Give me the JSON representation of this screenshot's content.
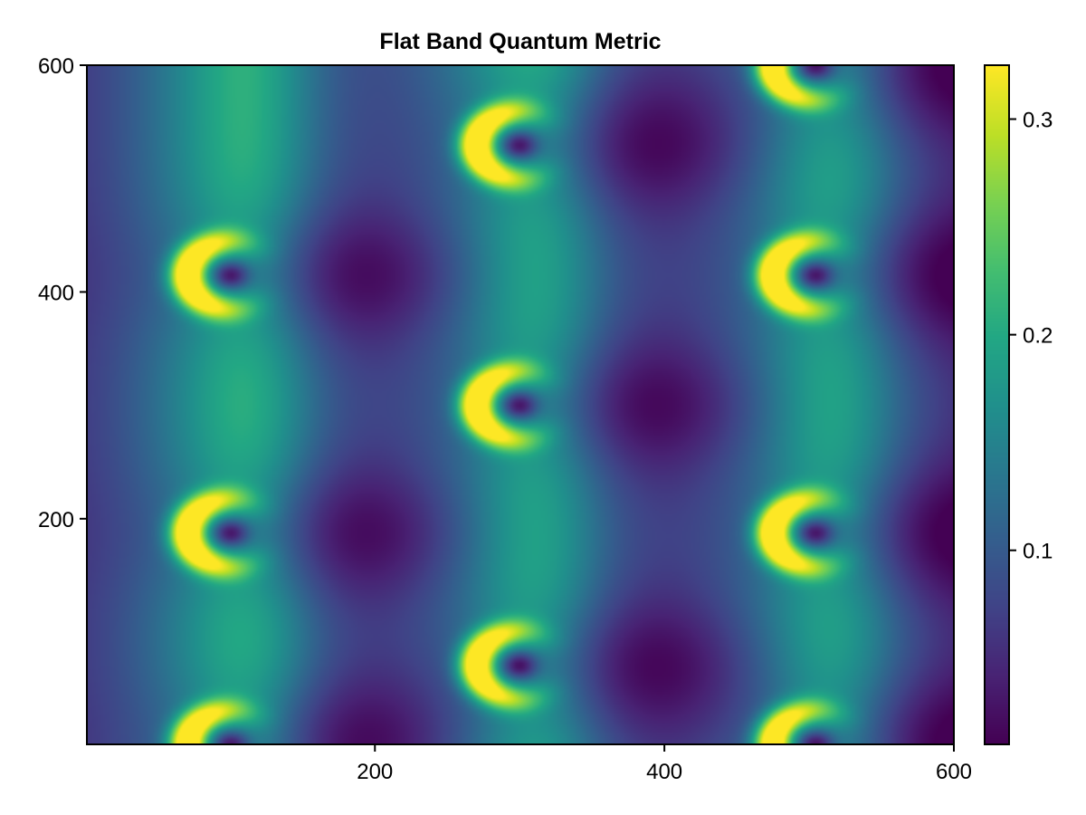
{
  "chart_data": {
    "type": "heatmap",
    "title": "Flat Band Quantum Metric",
    "xlabel": "",
    "ylabel": "",
    "xlim": [
      1,
      600
    ],
    "ylim": [
      1,
      600
    ],
    "x_ticks": [
      {
        "value": 200,
        "label": "200"
      },
      {
        "value": 400,
        "label": "400"
      },
      {
        "value": 600,
        "label": "600"
      }
    ],
    "y_ticks": [
      {
        "value": 200,
        "label": "200"
      },
      {
        "value": 400,
        "label": "400"
      },
      {
        "value": 600,
        "label": "600"
      }
    ],
    "colormap": "viridis",
    "colorbar": {
      "range": [
        0.01,
        0.325
      ],
      "ticks": [
        {
          "value": 0.1,
          "label": "0.1"
        },
        {
          "value": 0.2,
          "label": "0.2"
        },
        {
          "value": 0.3,
          "label": "0.3"
        }
      ]
    },
    "grid": false,
    "features": {
      "hotspot_columns_x": [
        100,
        300,
        505
      ],
      "hotspot_rows_y": [
        [
          0,
          187,
          415
        ],
        [
          70,
          300,
          530
        ],
        [
          0,
          187,
          415,
          600
        ]
      ],
      "peak_value": 0.325,
      "min_value": 0.01
    }
  }
}
